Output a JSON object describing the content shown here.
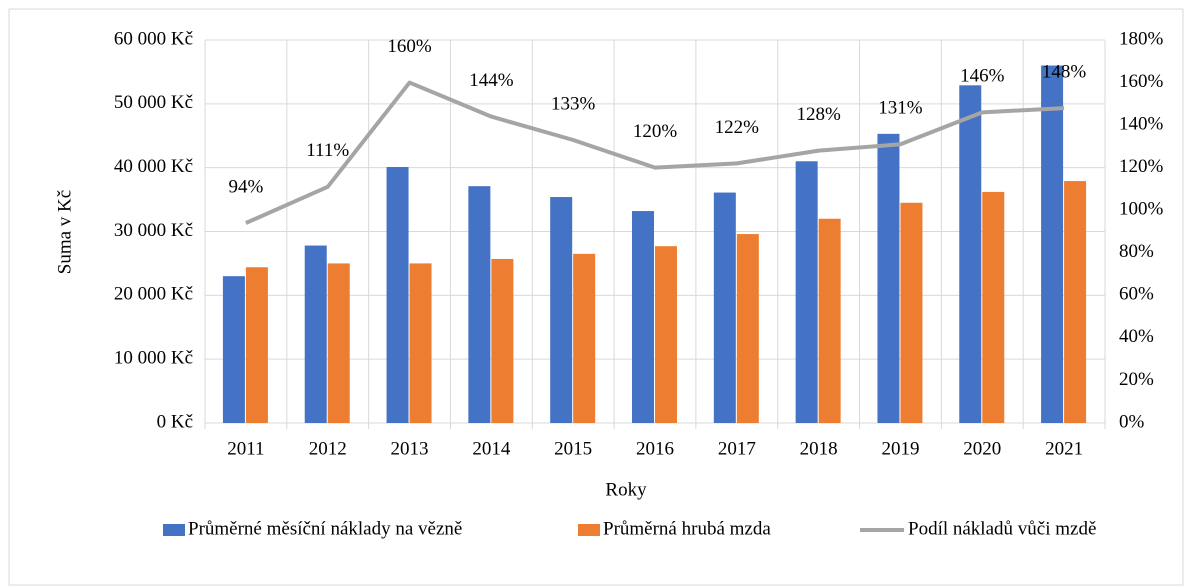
{
  "chart_data": {
    "type": "bar",
    "categories": [
      "2011",
      "2012",
      "2013",
      "2014",
      "2015",
      "2016",
      "2017",
      "2018",
      "2019",
      "2020",
      "2021"
    ],
    "series": [
      {
        "name": "Průměrné měsíční náklady na vězně",
        "color": "#4472c4",
        "axis": "y",
        "values": [
          23000,
          27800,
          40100,
          37100,
          35400,
          33200,
          36100,
          41000,
          45300,
          52900,
          56000
        ]
      },
      {
        "name": "Průměrná hrubá mzda",
        "color": "#ed7d31",
        "axis": "y",
        "values": [
          24400,
          25000,
          25000,
          25700,
          26500,
          27700,
          29600,
          32000,
          34500,
          36200,
          37900
        ]
      },
      {
        "name": "Podíl nákladů vůči mzdě",
        "color": "#a5a5a5",
        "axis": "y2",
        "type": "line",
        "values": [
          94,
          111,
          160,
          144,
          133,
          120,
          122,
          128,
          131,
          146,
          148
        ],
        "value_labels": [
          "94%",
          "111%",
          "160%",
          "144%",
          "133%",
          "120%",
          "122%",
          "128%",
          "131%",
          "146%",
          "148%"
        ]
      }
    ],
    "y_label": "Suma v Kč",
    "x_label": "Roky",
    "ylim": [
      0,
      60000
    ],
    "yticks": [
      {
        "value": 0,
        "label": "0 Kč"
      },
      {
        "value": 10000,
        "label": "10 000 Kč"
      },
      {
        "value": 20000,
        "label": "20 000 Kč"
      },
      {
        "value": 30000,
        "label": "30 000 Kč"
      },
      {
        "value": 40000,
        "label": "40 000 Kč"
      },
      {
        "value": 50000,
        "label": "50 000 Kč"
      },
      {
        "value": 60000,
        "label": "60 000 Kč"
      }
    ],
    "y2lim": [
      0,
      180
    ],
    "y2ticks": [
      {
        "value": 0,
        "label": "0%"
      },
      {
        "value": 20,
        "label": "20%"
      },
      {
        "value": 40,
        "label": "40%"
      },
      {
        "value": 60,
        "label": "60%"
      },
      {
        "value": 80,
        "label": "80%"
      },
      {
        "value": 100,
        "label": "100%"
      },
      {
        "value": 120,
        "label": "120%"
      },
      {
        "value": 140,
        "label": "140%"
      },
      {
        "value": 160,
        "label": "160%"
      },
      {
        "value": 180,
        "label": "180%"
      }
    ],
    "grid": true,
    "legend": "bottom"
  }
}
